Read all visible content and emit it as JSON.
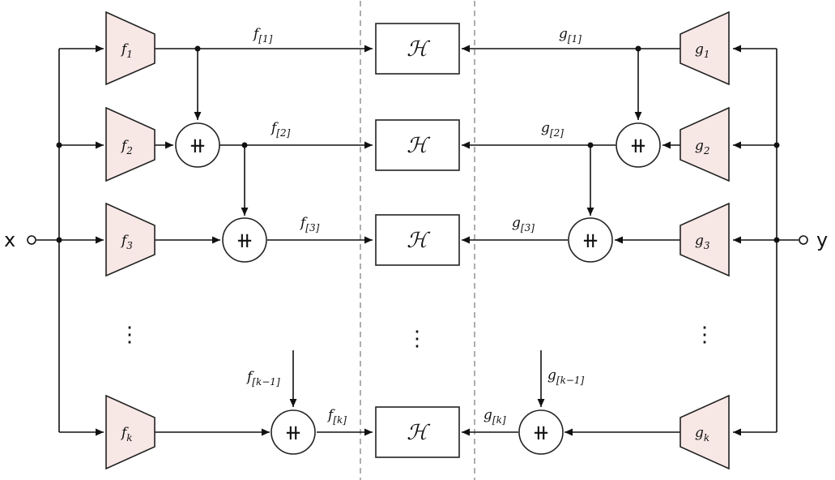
{
  "input_label": "x",
  "output_label": "y",
  "operator_symbol": "ℋ",
  "concat_symbol": "⧺",
  "left_encoders": [
    {
      "base": "f",
      "sub": "1"
    },
    {
      "base": "f",
      "sub": "2"
    },
    {
      "base": "f",
      "sub": "3"
    },
    {
      "base": "f",
      "sub": "k"
    }
  ],
  "right_encoders": [
    {
      "base": "g",
      "sub": "1"
    },
    {
      "base": "g",
      "sub": "2"
    },
    {
      "base": "g",
      "sub": "3"
    },
    {
      "base": "g",
      "sub": "k"
    }
  ],
  "left_features": [
    {
      "base": "f",
      "sub": "[1]"
    },
    {
      "base": "f",
      "sub": "[2]"
    },
    {
      "base": "f",
      "sub": "[3]"
    },
    {
      "base": "f",
      "sub": "[k]"
    }
  ],
  "right_features": [
    {
      "base": "g",
      "sub": "[1]"
    },
    {
      "base": "g",
      "sub": "[2]"
    },
    {
      "base": "g",
      "sub": "[3]"
    },
    {
      "base": "g",
      "sub": "[k]"
    }
  ],
  "left_incoming": {
    "base": "f",
    "sub": "[k−1]"
  },
  "right_incoming": {
    "base": "g",
    "sub": "[k−1]"
  },
  "ellipsis": "⋮"
}
